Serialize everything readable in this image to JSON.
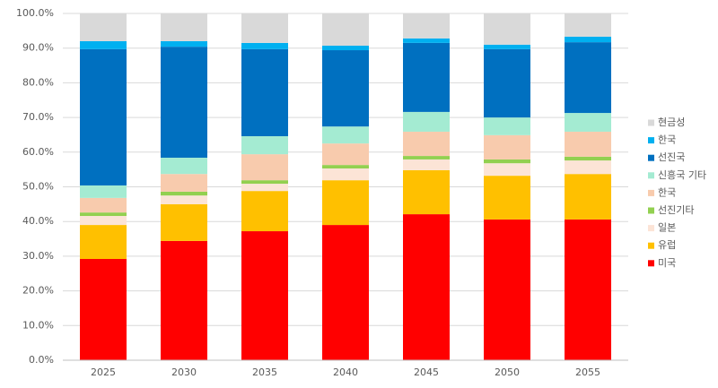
{
  "chart_data": {
    "type": "stacked_bar",
    "categories": [
      "2025",
      "2030",
      "2035",
      "2040",
      "2045",
      "2050",
      "2055"
    ],
    "series": [
      {
        "name": "미국",
        "color": "#ff0000",
        "values": [
          29.2,
          34.4,
          37.2,
          39.0,
          42.1,
          40.6,
          40.6
        ]
      },
      {
        "name": "유럽",
        "color": "#ffc000",
        "values": [
          9.8,
          10.6,
          11.6,
          12.9,
          12.7,
          12.6,
          13.1
        ]
      },
      {
        "name": "일본",
        "color": "#fce4d6",
        "values": [
          2.6,
          2.5,
          2.1,
          3.4,
          3.1,
          3.6,
          3.9
        ]
      },
      {
        "name": "선진기타",
        "color": "#92d050",
        "values": [
          1.0,
          1.1,
          1.0,
          1.0,
          1.0,
          1.1,
          1.1
        ]
      },
      {
        "name": "한국",
        "color": "#f8cbad",
        "values": [
          4.2,
          5.1,
          7.5,
          6.2,
          7.0,
          7.0,
          7.2
        ]
      },
      {
        "name": "신흥국 기타",
        "color": "#a4ebd2",
        "values": [
          3.6,
          4.7,
          5.2,
          4.9,
          5.7,
          5.1,
          5.4
        ]
      },
      {
        "name": "선진국",
        "color": "#0070c0",
        "values": [
          39.3,
          32.0,
          25.1,
          22.0,
          19.9,
          19.7,
          20.4
        ]
      },
      {
        "name": "한국",
        "color": "#00b0f0",
        "values": [
          2.3,
          1.6,
          1.8,
          1.3,
          1.3,
          1.3,
          1.6
        ]
      },
      {
        "name": "현금성",
        "color": "#d9d9d9",
        "values": [
          8.0,
          8.0,
          8.5,
          9.3,
          7.2,
          9.0,
          6.7
        ]
      }
    ],
    "ylim": [
      0,
      100
    ],
    "yticks": [
      {
        "value": 0,
        "label": "0.0%"
      },
      {
        "value": 10,
        "label": "10.0%"
      },
      {
        "value": 20,
        "label": "20.0%"
      },
      {
        "value": 30,
        "label": "30.0%"
      },
      {
        "value": 40,
        "label": "40.0%"
      },
      {
        "value": 50,
        "label": "50.0%"
      },
      {
        "value": 60,
        "label": "60.0%"
      },
      {
        "value": 70,
        "label": "70.0%"
      },
      {
        "value": 80,
        "label": "80.0%"
      },
      {
        "value": 90,
        "label": "90.0%"
      },
      {
        "value": 100,
        "label": "100.0%"
      }
    ],
    "grid": true
  }
}
